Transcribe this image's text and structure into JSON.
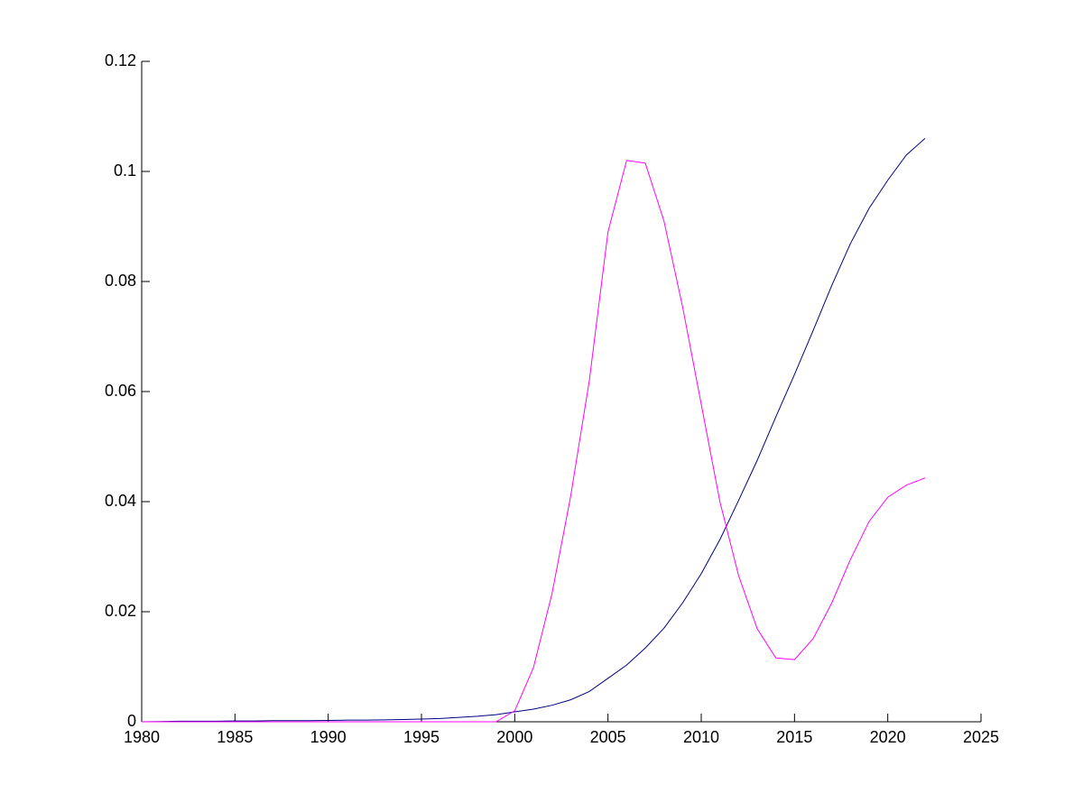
{
  "chart_data": {
    "type": "line",
    "x": [
      1980,
      1981,
      1982,
      1983,
      1984,
      1985,
      1986,
      1987,
      1988,
      1989,
      1990,
      1991,
      1992,
      1993,
      1994,
      1995,
      1996,
      1997,
      1998,
      1999,
      2000,
      2001,
      2002,
      2003,
      2004,
      2005,
      2006,
      2007,
      2008,
      2009,
      2010,
      2011,
      2012,
      2013,
      2014,
      2015,
      2016,
      2017,
      2018,
      2019,
      2020,
      2021,
      2022
    ],
    "series": [
      {
        "color": "#00007f",
        "values": [
          0,
          5e-05,
          0.0001,
          0.0001,
          0.0001,
          0.00015,
          0.00015,
          0.0002,
          0.0002,
          0.0002,
          0.00025,
          0.0003,
          0.0003,
          0.00035,
          0.0004,
          0.0005,
          0.0006,
          0.0008,
          0.001,
          0.0013,
          0.0018,
          0.0023,
          0.003,
          0.004,
          0.0055,
          0.0079,
          0.0103,
          0.0134,
          0.017,
          0.0216,
          0.0269,
          0.0331,
          0.0402,
          0.0475,
          0.0554,
          0.0631,
          0.0711,
          0.0793,
          0.0869,
          0.0933,
          0.0984,
          0.103,
          0.106
        ]
      },
      {
        "color": "#ff00ff",
        "values": [
          0,
          0,
          0,
          0,
          0,
          0,
          0,
          0,
          0,
          0,
          0,
          0,
          0,
          0,
          0,
          0,
          0,
          0,
          0,
          0,
          0.002,
          0.0098,
          0.0233,
          0.041,
          0.062,
          0.089,
          0.102,
          0.1015,
          0.091,
          0.0754,
          0.0577,
          0.04,
          0.0266,
          0.0169,
          0.0116,
          0.0113,
          0.0151,
          0.0216,
          0.0295,
          0.0364,
          0.0408,
          0.043,
          0.0443
        ]
      }
    ],
    "xlim": [
      1980,
      2025
    ],
    "xticks": [
      1980,
      1985,
      1990,
      1995,
      2000,
      2005,
      2010,
      2015,
      2020,
      2025
    ],
    "ylim": [
      0,
      0.12
    ],
    "yticks": [
      0,
      0.02,
      0.04,
      0.06,
      0.08,
      0.1,
      0.12
    ]
  }
}
